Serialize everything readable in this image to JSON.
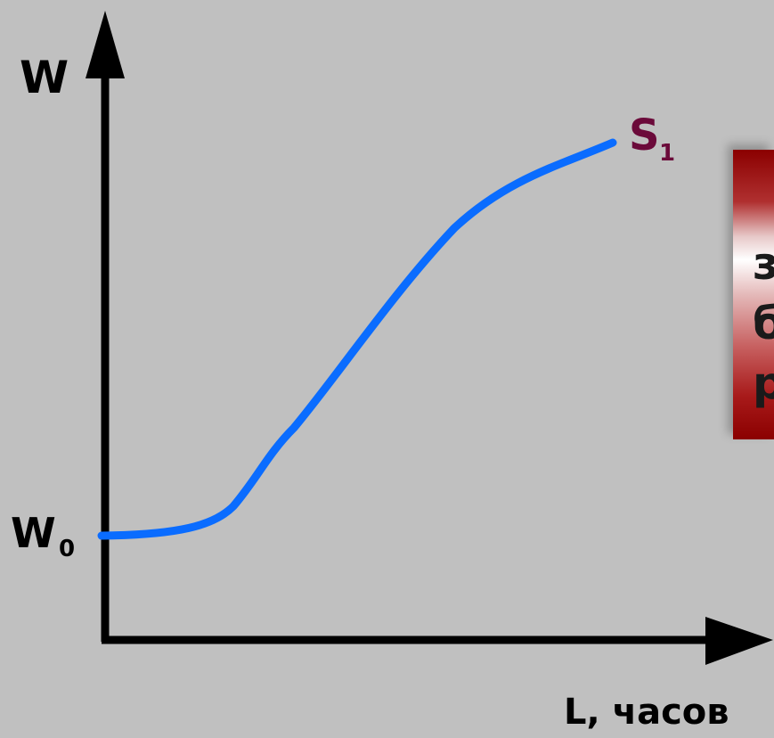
{
  "diagram": {
    "y_axis_label": "W",
    "x_axis_label": "L, часов",
    "w0_label": {
      "main": "W",
      "sub": "0"
    },
    "curve_label": {
      "main": "S",
      "sub": "1"
    },
    "curve_color": "#0a6cff",
    "label_color_curve": "#6b0a3a",
    "axis_color": "#000000"
  },
  "side_panel": {
    "lines": [
      "з",
      "б",
      "р"
    ]
  }
}
